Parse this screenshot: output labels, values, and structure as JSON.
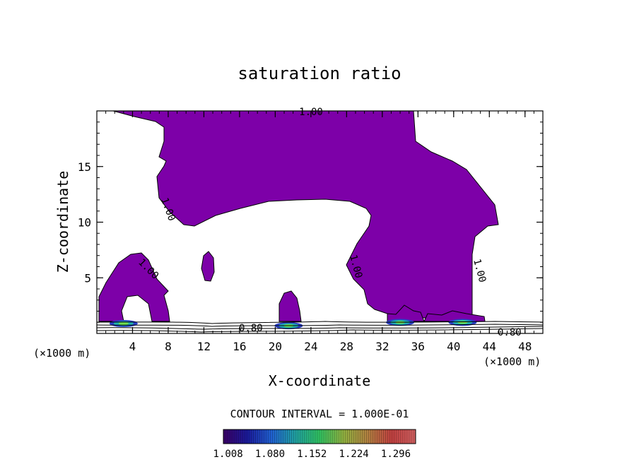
{
  "chart_data": {
    "type": "contour",
    "title": "saturation ratio",
    "xlabel": "X-coordinate",
    "ylabel": "Z-coordinate",
    "x_unit_label": "(×1000 m)",
    "y_unit_label": "(×1000 m)",
    "xlim": [
      0,
      50
    ],
    "ylim": [
      0,
      20
    ],
    "x_ticks": [
      4,
      8,
      12,
      16,
      20,
      24,
      28,
      32,
      36,
      40,
      44,
      48
    ],
    "y_ticks": [
      5,
      10,
      15
    ],
    "contour_interval_text": "CONTOUR INTERVAL = 1.000E-01",
    "contour_labels": [
      "1.00",
      "1.00",
      "1.00",
      "1.00",
      "1.00",
      "0.80",
      "0.80"
    ],
    "fill_threshold": 1.0,
    "fill_color": "#7d00a8",
    "colorbar": {
      "min": 1.0,
      "max": 1.33,
      "tick_values": [
        1.008,
        1.08,
        1.152,
        1.224,
        1.296
      ],
      "tick_labels": [
        "1.008",
        "1.080",
        "1.152",
        "1.224",
        "1.296"
      ],
      "colors": [
        "#3a0066",
        "#1a1a9a",
        "#2060d0",
        "#20a0a0",
        "#30c060",
        "#90b040",
        "#b08040",
        "#c04040",
        "#d06060"
      ]
    },
    "supersaturated_regions": [
      {
        "x_range": [
          0,
          8.3
        ],
        "z_range": [
          1.0,
          20.0
        ]
      },
      {
        "x_range": [
          23,
          47
        ],
        "z_range": [
          1.0,
          20.0
        ]
      },
      {
        "x_range": [
          19.8,
          23
        ],
        "z_range": [
          1.0,
          3.8
        ]
      },
      {
        "x_range": [
          11.6,
          13.2
        ],
        "z_range": [
          4.5,
          7.4
        ]
      }
    ],
    "peak_spots": [
      {
        "x": 3.0,
        "z": 1.4
      },
      {
        "x": 21.5,
        "z": 1.2
      },
      {
        "x": 34.0,
        "z": 1.5
      },
      {
        "x": 41.0,
        "z": 1.5
      }
    ],
    "grid": false
  }
}
